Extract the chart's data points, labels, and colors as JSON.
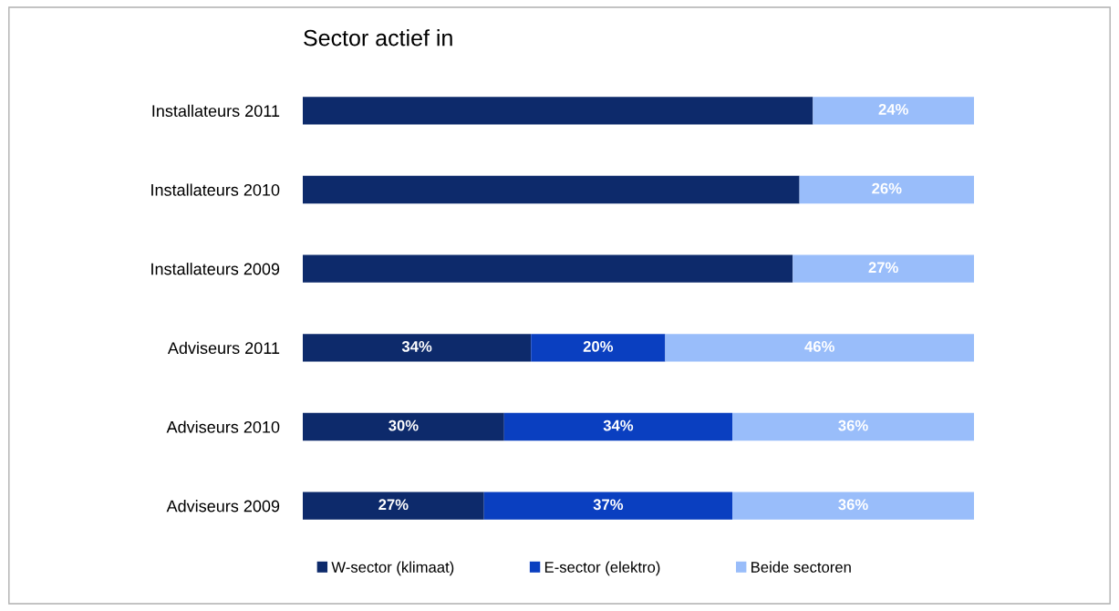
{
  "chart_data": {
    "type": "bar",
    "orientation": "horizontal",
    "stacked": true,
    "title": "Sector actief in",
    "categories": [
      "Installateurs 2011",
      "Installateurs 2010",
      "Installateurs 2009",
      "Adviseurs 2011",
      "Adviseurs 2010",
      "Adviseurs 2009"
    ],
    "xlim": [
      0,
      100
    ],
    "tick_labels": "y",
    "grid": false,
    "legend": "bottom",
    "series": [
      {
        "name": "W-sector (klimaat)",
        "color": "#0d2a6b",
        "values": [
          76,
          74,
          73,
          34,
          30,
          27
        ],
        "value_labels": [
          null,
          null,
          null,
          "34%",
          "30%",
          "27%"
        ]
      },
      {
        "name": "E-sector (elektro)",
        "color": "#0a3fc0",
        "values": [
          null,
          null,
          null,
          20,
          34,
          37
        ],
        "value_labels": [
          null,
          null,
          null,
          "20%",
          "34%",
          "37%"
        ]
      },
      {
        "name": "Beide sectoren",
        "color": "#99bdfa",
        "values": [
          24,
          26,
          27,
          46,
          36,
          36
        ],
        "value_labels": [
          "24%",
          "26%",
          "27%",
          "46%",
          "36%",
          "36%"
        ]
      }
    ]
  }
}
